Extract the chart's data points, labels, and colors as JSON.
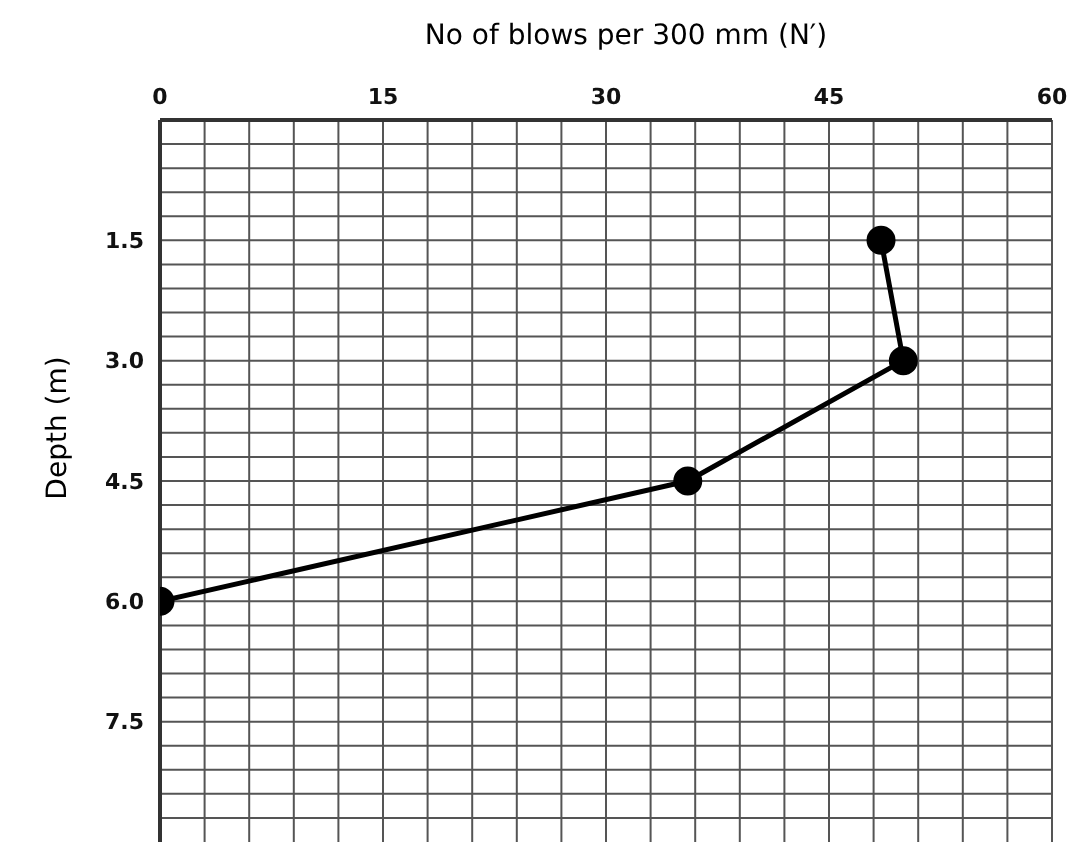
{
  "chart_data": {
    "type": "line",
    "xlabel": "No of blows per 300 mm (N′)",
    "ylabel": "Depth (m)",
    "series": [
      {
        "color": "#000000",
        "x": [
          48.5,
          50,
          35.5,
          0
        ],
        "values": [
          1.5,
          3.0,
          4.5,
          6.0
        ]
      }
    ],
    "xlim": [
      0,
      60
    ],
    "xticks": [
      0,
      {
        "value": 3,
        "label": null
      },
      {
        "value": 6,
        "label": null
      },
      {
        "value": 9,
        "label": null
      },
      {
        "value": 12,
        "label": null
      },
      15,
      {
        "value": 18,
        "label": null
      },
      {
        "value": 21,
        "label": null
      },
      {
        "value": 24,
        "label": null
      },
      {
        "value": 27,
        "label": null
      },
      30,
      {
        "value": 33,
        "label": null
      },
      {
        "value": 36,
        "label": null
      },
      {
        "value": 39,
        "label": null
      },
      {
        "value": 42,
        "label": null
      },
      45,
      {
        "value": 48,
        "label": null
      },
      {
        "value": 51,
        "label": null
      },
      {
        "value": 54,
        "label": null
      },
      {
        "value": 57,
        "label": null
      },
      60
    ],
    "ylim": [
      9,
      0
    ],
    "yticks": [
      {
        "value": 0.3,
        "label": null
      },
      {
        "value": 0.6,
        "label": null
      },
      {
        "value": 0.9,
        "label": null
      },
      {
        "value": 1.2,
        "label": null
      },
      {
        "value": 1.5,
        "label": "1.5"
      },
      {
        "value": 1.8,
        "label": null
      },
      {
        "value": 2.1,
        "label": null
      },
      {
        "value": 2.4,
        "label": null
      },
      {
        "value": 2.7,
        "label": null
      },
      {
        "value": 3,
        "label": "3.0"
      },
      {
        "value": 3.3,
        "label": null
      },
      {
        "value": 3.6,
        "label": null
      },
      {
        "value": 3.9,
        "label": null
      },
      {
        "value": 4.2,
        "label": null
      },
      {
        "value": 4.5,
        "label": "4.5"
      },
      {
        "value": 4.8,
        "label": null
      },
      {
        "value": 5.1,
        "label": null
      },
      {
        "value": 5.4,
        "label": null
      },
      {
        "value": 5.7,
        "label": null
      },
      {
        "value": 6,
        "label": "6.0"
      },
      {
        "value": 6.3,
        "label": null
      },
      {
        "value": 6.6,
        "label": null
      },
      {
        "value": 6.9,
        "label": null
      },
      {
        "value": 7.2,
        "label": null
      },
      {
        "value": 7.5,
        "label": "7.5"
      },
      {
        "value": 7.8,
        "label": null
      },
      {
        "value": 8.1,
        "label": null
      },
      {
        "value": 8.4,
        "label": null
      },
      {
        "value": 8.7,
        "label": null
      }
    ],
    "grid": true,
    "marker": "circle",
    "line_style": "solid"
  }
}
